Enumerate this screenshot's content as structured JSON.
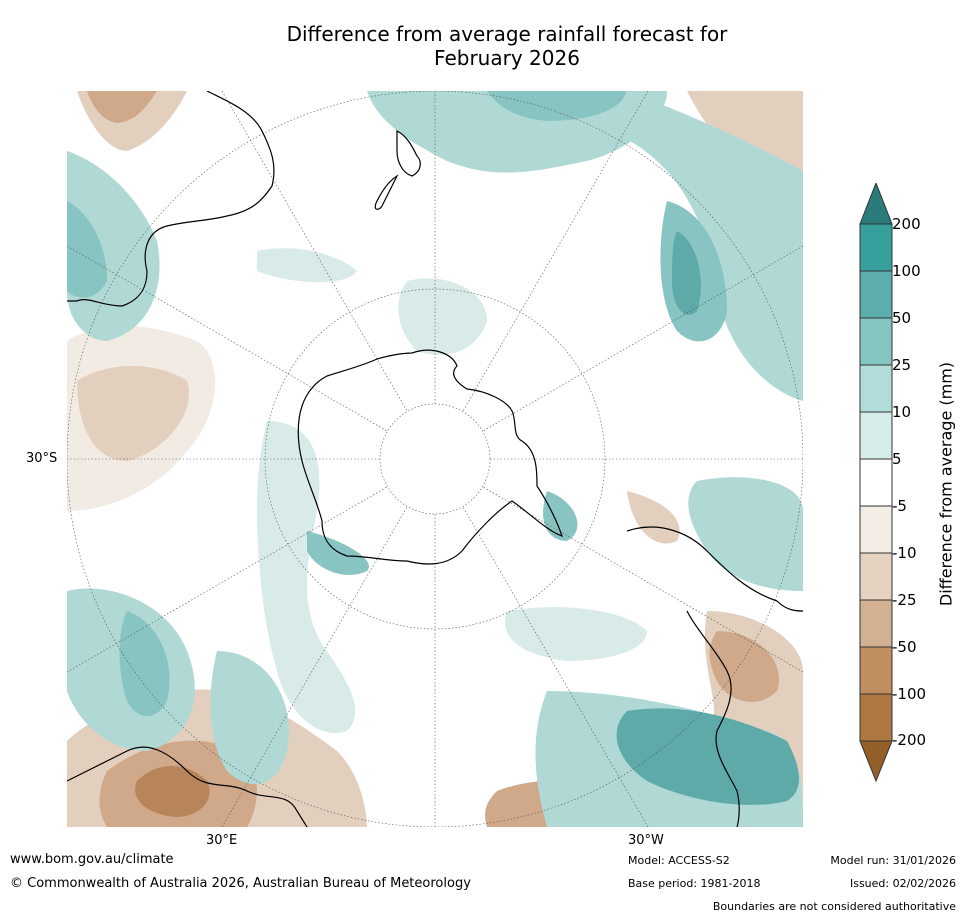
{
  "title": {
    "line1": "Difference from average rainfall forecast for",
    "line2": "February 2026"
  },
  "map": {
    "projection": "south-polar-stereographic",
    "latitude_label": "30°S",
    "longitude_labels": [
      "30°E",
      "30°W"
    ],
    "colors": {
      "dry_strong": "#a0602a",
      "dry_3": "#b8845a",
      "dry_2": "#cfa98a",
      "dry_1": "#e3cfbe",
      "dry_0": "#f1ebe3",
      "wet_0": "#d8ebe8",
      "wet_1": "#b0d9d6",
      "wet_2": "#88c4c2",
      "wet_3": "#5daaa9",
      "wet_strong": "#2e9592",
      "coast": "#000000"
    }
  },
  "chart_data": {
    "type": "map",
    "title": "Difference from average rainfall forecast for February 2026",
    "legend": {
      "label": "Difference from average (mm)",
      "ticks": [
        "200",
        "100",
        "50",
        "25",
        "10",
        "5",
        "-5",
        "-10",
        "-25",
        "-50",
        "-100",
        "-200"
      ],
      "colors": [
        "#2a7b79",
        "#35a09c",
        "#5caeac",
        "#85c5c2",
        "#b0dcd9",
        "#d6ecea",
        "#ffffff",
        "#f3ede6",
        "#e5d2c1",
        "#d1b191",
        "#bf8f62",
        "#ad773f",
        "#93602a"
      ]
    }
  },
  "footer": {
    "url": "www.bom.gov.au/climate",
    "copyright": "© Commonwealth of Australia 2026, Australian Bureau of Meteorology",
    "model": "Model: ACCESS-S2",
    "base_period": "Base period: 1981-2018",
    "model_run": "Model run: 31/01/2026",
    "issued": "Issued: 02/02/2026",
    "disclaimer": "Boundaries are not considered authoritative"
  }
}
